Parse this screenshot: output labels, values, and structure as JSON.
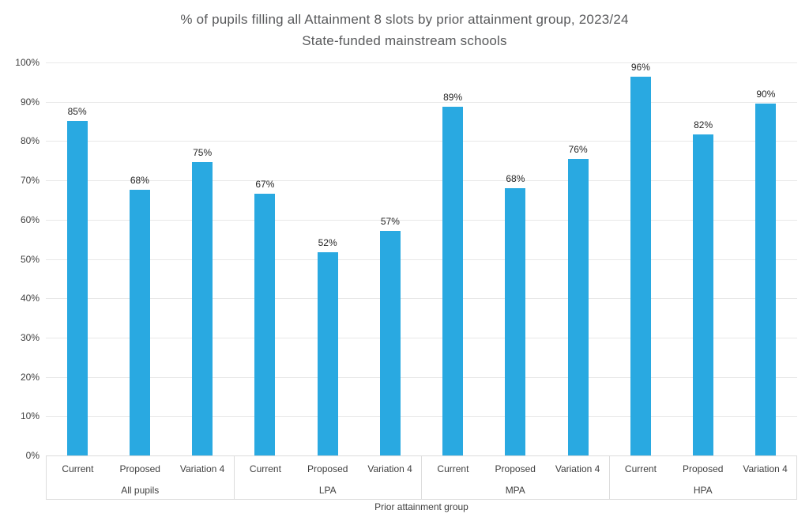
{
  "chart_data": {
    "type": "bar",
    "title": "% of pupils filling all Attainment 8 slots by prior attainment group, 2023/24",
    "subtitle": "State-funded mainstream schools",
    "xlabel": "Prior attainment group",
    "ylabel": "",
    "ylim": [
      0,
      100
    ],
    "ytick_step": 10,
    "ytick_labels": [
      "0%",
      "10%",
      "20%",
      "30%",
      "40%",
      "50%",
      "60%",
      "70%",
      "80%",
      "90%",
      "100%"
    ],
    "grid": true,
    "legend": "none",
    "categories": [
      "All pupils",
      "LPA",
      "MPA",
      "HPA"
    ],
    "series_labels": [
      "Current",
      "Proposed",
      "Variation 4"
    ],
    "groups": [
      {
        "label": "All pupils",
        "bars": [
          {
            "label": "Current",
            "value": 85.2,
            "display": "85%"
          },
          {
            "label": "Proposed",
            "value": 67.6,
            "display": "68%"
          },
          {
            "label": "Variation 4",
            "value": 74.7,
            "display": "75%"
          }
        ]
      },
      {
        "label": "LPA",
        "bars": [
          {
            "label": "Current",
            "value": 66.6,
            "display": "67%"
          },
          {
            "label": "Proposed",
            "value": 51.8,
            "display": "52%"
          },
          {
            "label": "Variation 4",
            "value": 57.1,
            "display": "57%"
          }
        ]
      },
      {
        "label": "MPA",
        "bars": [
          {
            "label": "Current",
            "value": 88.8,
            "display": "89%"
          },
          {
            "label": "Proposed",
            "value": 68.1,
            "display": "68%"
          },
          {
            "label": "Variation 4",
            "value": 75.5,
            "display": "76%"
          }
        ]
      },
      {
        "label": "HPA",
        "bars": [
          {
            "label": "Current",
            "value": 96.3,
            "display": "96%"
          },
          {
            "label": "Proposed",
            "value": 81.6,
            "display": "82%"
          },
          {
            "label": "Variation 4",
            "value": 89.6,
            "display": "90%"
          }
        ]
      }
    ],
    "colors": {
      "bar": "#29A9E1",
      "gridline": "#E8E8E8",
      "axis_box_border": "#DCDCDC",
      "title_text": "#58595B",
      "tick_text": "#404040",
      "value_label_text": "#262626",
      "background": "#FFFFFF"
    }
  }
}
